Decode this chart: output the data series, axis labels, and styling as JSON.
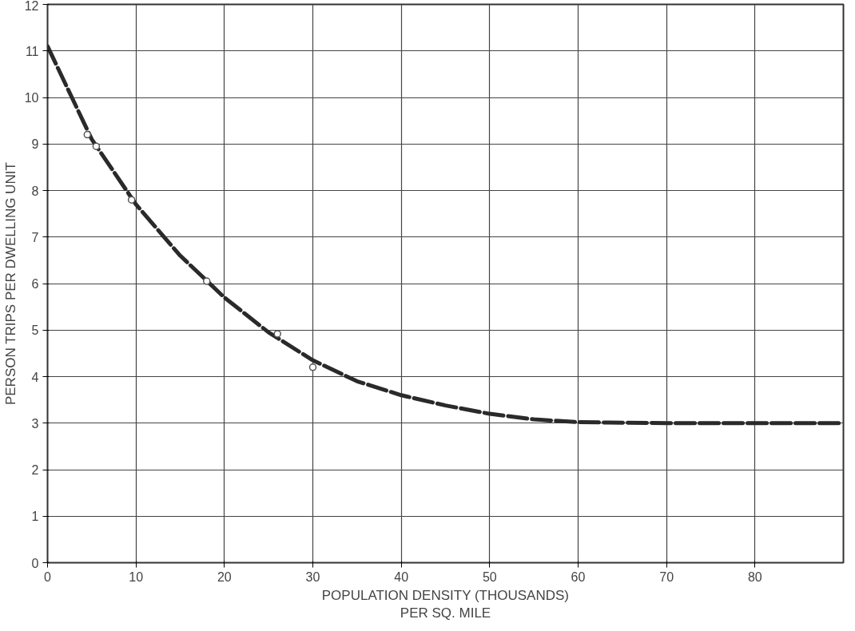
{
  "chart_data": {
    "type": "line",
    "xlabel": "POPULATION DENSITY (THOUSANDS)\nPER SQ. MILE",
    "ylabel": "PERSON TRIPS PER DWELLING UNIT",
    "xlim": [
      0,
      90
    ],
    "ylim": [
      0,
      12
    ],
    "xticks": [
      0,
      10,
      20,
      30,
      40,
      50,
      60,
      70,
      80
    ],
    "yticks": [
      0,
      1,
      2,
      3,
      4,
      5,
      6,
      7,
      8,
      9,
      10,
      11,
      12
    ],
    "grid": true,
    "series": [
      {
        "type": "scatter",
        "marker": "circle",
        "color": "#555555",
        "x": [
          4.5,
          5.5,
          9.5,
          18,
          26,
          30
        ],
        "values": [
          9.2,
          8.95,
          7.8,
          6.05,
          4.92,
          4.2
        ]
      },
      {
        "line_style": "dashed",
        "color": "#2a2a2a",
        "x": [
          0,
          5,
          10,
          15,
          20,
          25,
          30,
          35,
          40,
          45,
          50,
          55,
          60,
          70,
          80,
          90
        ],
        "values": [
          11.1,
          9.1,
          7.7,
          6.6,
          5.7,
          4.95,
          4.35,
          3.9,
          3.6,
          3.38,
          3.2,
          3.08,
          3.02,
          3.0,
          3.0,
          3.0
        ]
      }
    ]
  }
}
